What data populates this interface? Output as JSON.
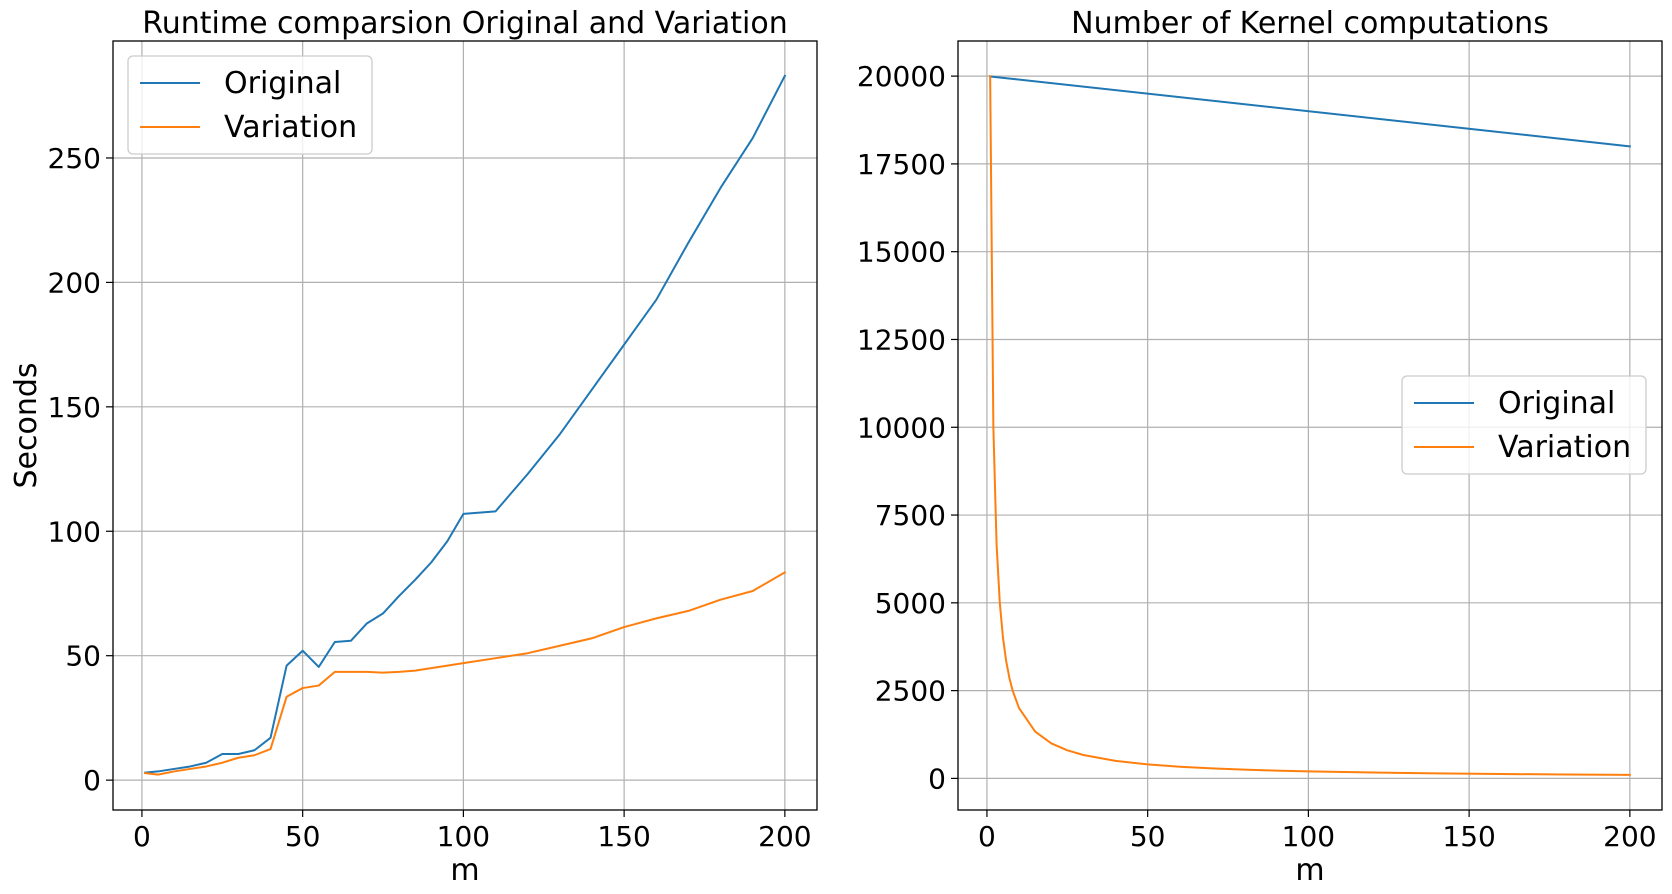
{
  "chart_data": [
    {
      "type": "line",
      "title": "Runtime comparsion Original and Variation",
      "xlabel": "m",
      "ylabel": "Seconds",
      "xlim": [
        -9,
        210
      ],
      "ylim": [
        -12,
        297
      ],
      "xticks": [
        0,
        50,
        100,
        150,
        200
      ],
      "yticks": [
        0,
        50,
        100,
        150,
        200,
        250
      ],
      "grid": true,
      "legend_position": "top-left",
      "series": [
        {
          "name": "Original",
          "color": "#1f77b4",
          "x": [
            1,
            5,
            10,
            15,
            20,
            25,
            30,
            35,
            40,
            45,
            50,
            55,
            60,
            65,
            70,
            75,
            80,
            85,
            90,
            95,
            100,
            110,
            120,
            130,
            140,
            150,
            160,
            170,
            180,
            190,
            200
          ],
          "y": [
            3,
            3.5,
            4.5,
            5.5,
            7,
            10.5,
            10.5,
            12,
            17,
            46,
            52,
            45.5,
            55.5,
            56,
            63,
            67,
            74,
            80.5,
            87.5,
            96,
            107,
            108,
            123,
            139,
            157,
            175,
            193,
            216,
            238,
            258,
            283
          ]
        },
        {
          "name": "Variation",
          "color": "#ff7f0e",
          "x": [
            1,
            5,
            10,
            15,
            20,
            25,
            30,
            35,
            40,
            45,
            50,
            55,
            60,
            65,
            70,
            75,
            80,
            85,
            90,
            95,
            100,
            110,
            120,
            130,
            140,
            150,
            160,
            170,
            180,
            190,
            200
          ],
          "y": [
            2.8,
            2.2,
            3.5,
            4.5,
            5.5,
            7,
            9,
            10,
            12.5,
            33.5,
            37,
            38,
            43.5,
            43.5,
            43.5,
            43.2,
            43.5,
            44,
            45,
            46,
            47,
            49,
            51,
            54,
            57,
            61.5,
            65,
            68,
            72.5,
            76,
            83.5
          ]
        }
      ]
    },
    {
      "type": "line",
      "title": "Number of Kernel computations",
      "xlabel": "m",
      "ylabel": "",
      "xlim": [
        -9,
        210
      ],
      "ylim": [
        -900,
        21000
      ],
      "xticks": [
        0,
        50,
        100,
        150,
        200
      ],
      "yticks": [
        0,
        2500,
        5000,
        7500,
        10000,
        12500,
        15000,
        17500,
        20000
      ],
      "grid": true,
      "legend_position": "center-right",
      "series": [
        {
          "name": "Original",
          "color": "#1f77b4",
          "x": [
            1,
            200
          ],
          "y": [
            19990,
            18000
          ]
        },
        {
          "name": "Variation",
          "color": "#ff7f0e",
          "x": [
            1,
            2,
            3,
            4,
            5,
            6,
            7,
            8,
            10,
            15,
            20,
            25,
            30,
            40,
            50,
            60,
            70,
            80,
            90,
            100,
            120,
            140,
            160,
            180,
            200
          ],
          "y": [
            20000,
            10000,
            6667,
            5000,
            4000,
            3333,
            2857,
            2500,
            2000,
            1333,
            1000,
            800,
            667,
            500,
            400,
            333,
            286,
            250,
            222,
            200,
            167,
            143,
            125,
            111,
            100
          ]
        }
      ]
    }
  ]
}
